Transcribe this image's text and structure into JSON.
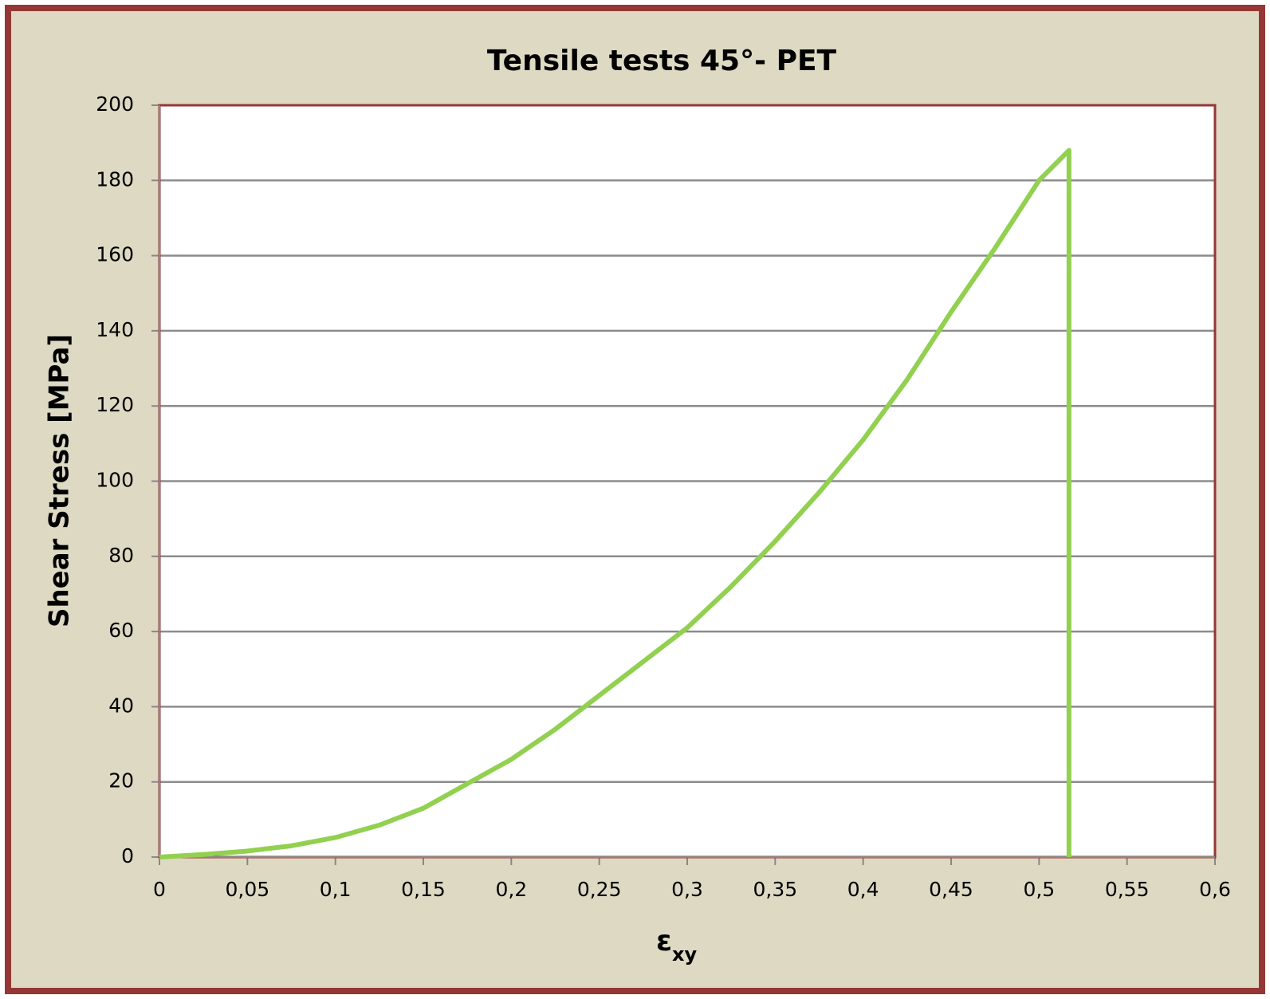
{
  "chart_data": {
    "type": "line",
    "title": "Tensile tests  45°- PET",
    "y_label": "Shear Stress [MPa]",
    "x_label": "ε",
    "x_label_sub": "xy",
    "x": [
      0,
      0.025,
      0.05,
      0.075,
      0.1,
      0.125,
      0.15,
      0.175,
      0.2,
      0.225,
      0.25,
      0.275,
      0.3,
      0.325,
      0.35,
      0.375,
      0.4,
      0.425,
      0.45,
      0.475,
      0.5,
      0.517,
      0.517
    ],
    "series": [
      {
        "color": "#92d050",
        "values": [
          0,
          0.7,
          1.6,
          3,
          5.2,
          8.5,
          13,
          19.5,
          26,
          34,
          43,
          52,
          61,
          72,
          84,
          97,
          111,
          127,
          145,
          162,
          180,
          188,
          0
        ]
      }
    ],
    "xlim": [
      0,
      0.6
    ],
    "xticks": [
      0,
      {
        "value": 0.05,
        "label": "0,05"
      },
      {
        "value": 0.1,
        "label": "0,1"
      },
      {
        "value": 0.15,
        "label": "0,15"
      },
      {
        "value": 0.2,
        "label": "0,2"
      },
      {
        "value": 0.25,
        "label": "0,25"
      },
      {
        "value": 0.3,
        "label": "0,3"
      },
      {
        "value": 0.35,
        "label": "0,35"
      },
      {
        "value": 0.4,
        "label": "0,4"
      },
      {
        "value": 0.45,
        "label": "0,45"
      },
      {
        "value": 0.5,
        "label": "0,5"
      },
      {
        "value": 0.55,
        "label": "0,55"
      },
      {
        "value": 0.6,
        "label": "0,6"
      }
    ],
    "ylim": [
      0,
      200
    ],
    "yticks": [
      0,
      20,
      40,
      60,
      80,
      100,
      120,
      140,
      160,
      180,
      200
    ],
    "grid": true
  }
}
